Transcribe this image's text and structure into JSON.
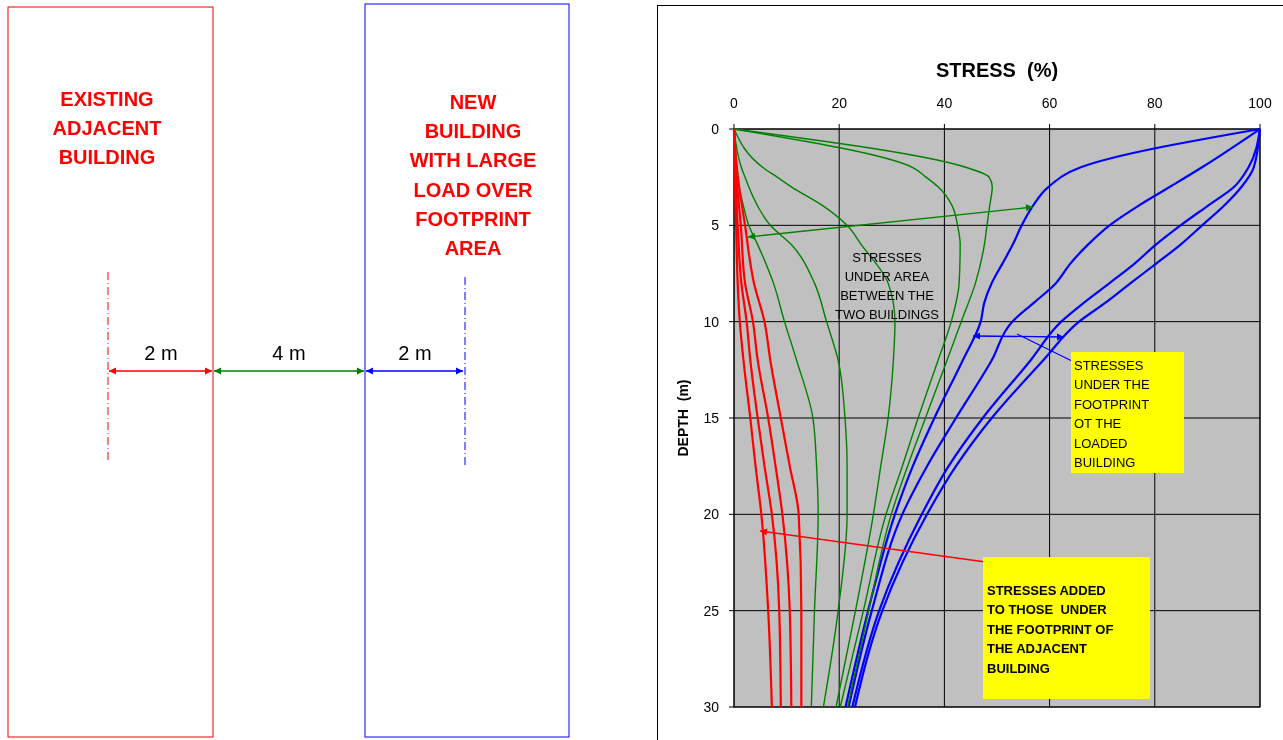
{
  "chart_data": [
    {
      "type": "other",
      "annotations": [
        "EXISTING\nADJACENT\nBUILDING",
        "NEW\nBUILDING\nWITH LARGE\nLOAD OVER\nFOOTPRINT\nAREA",
        "2 m",
        "4 m",
        "2 m"
      ]
    },
    {
      "type": "line",
      "xlabel": "STRESS  (%)",
      "ylabel": "DEPTH  (m)",
      "xlim": [
        0,
        100
      ],
      "xticks": [
        0,
        20,
        40,
        60,
        80,
        100
      ],
      "ylim": [
        30,
        0
      ],
      "yticks": [
        0,
        5,
        10,
        15,
        20,
        25,
        30
      ],
      "grid": true,
      "annotations": [
        "STRESSES\nUNDER AREA\nBETWEEN THE\nTWO BUILDINGS",
        "STRESSES\nUNDER THE\nFOOTPRINT\nOT THE\nLOADED\nBUILDING",
        "STRESSES ADDED\nTO THOSE  UNDER\nTHE FOOTPRINT OF\nTHE ADJACENT\nBUILDING"
      ],
      "series": [
        {
          "color": "#0000ff",
          "x": [
            100,
            65.8,
            59.8,
            56.8,
            54.7,
            53,
            51,
            49,
            47.6,
            46.9,
            43.5,
            38.1,
            34,
            30.6,
            25.5,
            21.2
          ],
          "values": [
            0,
            2,
            3,
            4,
            5,
            6,
            7,
            8,
            9,
            10,
            12,
            15,
            17.5,
            20,
            25,
            30
          ]
        },
        {
          "color": "#0000ff",
          "x": [
            100,
            88.9,
            82.9,
            76.8,
            71.4,
            67.3,
            63.9,
            61.2,
            57.1,
            52.9,
            49,
            42.2,
            36.7,
            32,
            26.2,
            21.8
          ],
          "values": [
            0,
            2,
            3,
            4,
            5,
            6,
            7,
            8,
            9,
            10,
            12,
            15,
            17.5,
            20,
            25,
            30
          ]
        },
        {
          "color": "#0000ff",
          "x": [
            100,
            97.8,
            95.1,
            90,
            84.9,
            80.2,
            76.1,
            71.4,
            66.6,
            62.2,
            56.4,
            47.3,
            40.8,
            35.7,
            27.6,
            22.5
          ],
          "values": [
            0,
            2,
            3,
            4,
            5,
            6,
            7,
            8,
            9,
            10,
            12,
            15,
            17.5,
            20,
            25,
            30
          ]
        },
        {
          "color": "#0000ff",
          "x": [
            100,
            98.8,
            96.5,
            93.1,
            89,
            84.9,
            80.2,
            75.4,
            70.7,
            65.6,
            58.8,
            49,
            42.2,
            36.7,
            28.2,
            23
          ],
          "values": [
            0,
            2,
            3,
            4,
            5,
            6,
            7,
            8,
            9,
            10,
            12,
            15,
            17.5,
            20,
            25,
            30
          ]
        },
        {
          "color": "#008000",
          "x": [
            0,
            44.2,
            48.5,
            49.1,
            48.6,
            48.1,
            47.6,
            45.9,
            43.2,
            40.5,
            36.4,
            33,
            29.9,
            25.6,
            21.6
          ],
          "values": [
            0,
            2,
            2.5,
            3,
            4,
            5,
            6,
            8,
            10,
            12,
            15,
            17.5,
            20,
            25,
            30
          ]
        },
        {
          "color": "#008000",
          "x": [
            0,
            34,
            36.5,
            38.8,
            41.5,
            42.5,
            43,
            42.8,
            41.3,
            38.8,
            35,
            32,
            28.9,
            24.6,
            20.2
          ],
          "values": [
            0,
            2,
            2.5,
            3,
            4,
            5,
            6,
            8,
            10,
            12,
            15,
            17.5,
            20,
            25,
            30
          ]
        },
        {
          "color": "#008000",
          "x": [
            0,
            5.5,
            8.2,
            10.9,
            17,
            21.5,
            24.2,
            29.3,
            30.6,
            30.3,
            29.3,
            27.9,
            26.5,
            23.1,
            19.4
          ],
          "values": [
            0,
            2,
            2.5,
            3,
            4,
            5,
            6,
            8,
            10,
            12,
            15,
            17.5,
            20,
            25,
            30
          ]
        },
        {
          "color": "#008000",
          "x": [
            0,
            1.4,
            2.1,
            2.8,
            4.5,
            6.9,
            10.9,
            15.3,
            17.6,
            19.8,
            21.1,
            21.5,
            21.5,
            19.8,
            17
          ],
          "values": [
            0,
            2,
            2.5,
            3,
            4,
            5,
            6,
            8,
            10,
            12,
            15,
            17.5,
            20,
            25,
            30
          ]
        },
        {
          "color": "#008000",
          "x": [
            0,
            0.6,
            0.8,
            1,
            1.8,
            2.8,
            4.5,
            7.5,
            9.6,
            11.9,
            15,
            15.7,
            16,
            15.3,
            14.7
          ],
          "values": [
            0,
            2,
            2.5,
            3,
            4,
            5,
            6,
            8,
            10,
            12,
            15,
            17.5,
            20,
            25,
            30
          ]
        },
        {
          "color": "#ff0000",
          "x": [
            0,
            0.1,
            0.4,
            0.7,
            1.1,
            1.8,
            3.1,
            4.1,
            5.2,
            6.5,
            7.2
          ],
          "values": [
            0,
            2,
            5,
            8,
            10,
            12,
            15,
            17.5,
            20,
            25,
            30
          ]
        },
        {
          "color": "#ff0000",
          "x": [
            0,
            0.2,
            0.7,
            1.4,
            2.4,
            3.1,
            4.5,
            5.8,
            7.2,
            8.6,
            8.9
          ],
          "values": [
            0,
            2,
            5,
            8,
            10,
            12,
            15,
            17.5,
            20,
            25,
            30
          ]
        },
        {
          "color": "#ff0000",
          "x": [
            0,
            0.3,
            1.3,
            2.1,
            3.6,
            4.5,
            6.5,
            7.9,
            9.2,
            10.6,
            10.9
          ],
          "values": [
            0,
            2,
            5,
            8,
            10,
            12,
            15,
            17.5,
            20,
            25,
            30
          ]
        },
        {
          "color": "#ff0000",
          "x": [
            0,
            0.5,
            2.1,
            3.8,
            5.8,
            6.9,
            8.9,
            10.6,
            12.3,
            12.8,
            12.8
          ],
          "values": [
            0,
            2,
            5,
            8,
            10,
            12,
            15,
            17.5,
            20,
            25,
            30
          ]
        }
      ]
    }
  ]
}
